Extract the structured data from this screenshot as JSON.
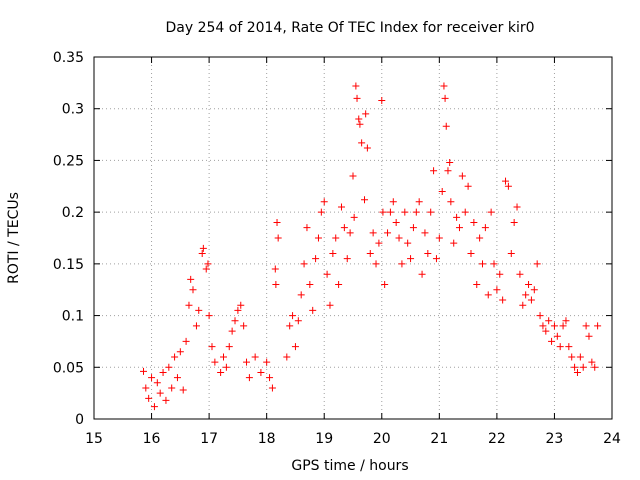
{
  "chart_data": {
    "type": "scatter",
    "title": "Day 254 of 2014, Rate Of TEC Index for receiver kir0",
    "xlabel": "GPS time / hours",
    "ylabel": "ROTI / TECUs",
    "xlim": [
      15,
      24
    ],
    "ylim": [
      0,
      0.35
    ],
    "x_ticks": [
      15,
      16,
      17,
      18,
      19,
      20,
      21,
      22,
      23,
      24
    ],
    "x_tick_labels": [
      "15",
      "16",
      "17",
      "18",
      "19",
      "20",
      "21",
      "22",
      "23",
      "24"
    ],
    "y_ticks": [
      0,
      0.05,
      0.1,
      0.15,
      0.2,
      0.25,
      0.3,
      0.35
    ],
    "y_tick_labels": [
      "0",
      "0.05",
      "0.1",
      "0.15",
      "0.2",
      "0.25",
      "0.3",
      "0.35"
    ],
    "grid": true,
    "marker": "+",
    "color": "#ff0000",
    "series": [
      {
        "name": "ROTI",
        "points": [
          [
            15.86,
            0.046
          ],
          [
            15.9,
            0.03
          ],
          [
            15.95,
            0.02
          ],
          [
            16.0,
            0.04
          ],
          [
            16.05,
            0.012
          ],
          [
            16.1,
            0.035
          ],
          [
            16.15,
            0.025
          ],
          [
            16.2,
            0.045
          ],
          [
            16.25,
            0.018
          ],
          [
            16.3,
            0.05
          ],
          [
            16.35,
            0.03
          ],
          [
            16.4,
            0.06
          ],
          [
            16.45,
            0.04
          ],
          [
            16.5,
            0.065
          ],
          [
            16.55,
            0.028
          ],
          [
            16.6,
            0.075
          ],
          [
            16.65,
            0.11
          ],
          [
            16.68,
            0.135
          ],
          [
            16.72,
            0.125
          ],
          [
            16.78,
            0.09
          ],
          [
            16.82,
            0.105
          ],
          [
            16.88,
            0.16
          ],
          [
            16.9,
            0.165
          ],
          [
            16.95,
            0.145
          ],
          [
            16.98,
            0.15
          ],
          [
            17.0,
            0.1
          ],
          [
            17.05,
            0.07
          ],
          [
            17.1,
            0.055
          ],
          [
            17.2,
            0.045
          ],
          [
            17.25,
            0.06
          ],
          [
            17.3,
            0.05
          ],
          [
            17.35,
            0.07
          ],
          [
            17.4,
            0.085
          ],
          [
            17.45,
            0.095
          ],
          [
            17.5,
            0.105
          ],
          [
            17.55,
            0.11
          ],
          [
            17.6,
            0.09
          ],
          [
            17.65,
            0.055
          ],
          [
            17.7,
            0.04
          ],
          [
            17.8,
            0.06
          ],
          [
            17.9,
            0.045
          ],
          [
            18.0,
            0.055
          ],
          [
            18.05,
            0.04
          ],
          [
            18.1,
            0.03
          ],
          [
            18.15,
            0.145
          ],
          [
            18.16,
            0.13
          ],
          [
            18.18,
            0.19
          ],
          [
            18.2,
            0.175
          ],
          [
            18.35,
            0.06
          ],
          [
            18.4,
            0.09
          ],
          [
            18.45,
            0.1
          ],
          [
            18.5,
            0.07
          ],
          [
            18.55,
            0.095
          ],
          [
            18.6,
            0.12
          ],
          [
            18.65,
            0.15
          ],
          [
            18.7,
            0.185
          ],
          [
            18.75,
            0.13
          ],
          [
            18.8,
            0.105
          ],
          [
            18.85,
            0.155
          ],
          [
            18.9,
            0.175
          ],
          [
            18.95,
            0.2
          ],
          [
            19.0,
            0.21
          ],
          [
            19.05,
            0.14
          ],
          [
            19.1,
            0.11
          ],
          [
            19.15,
            0.16
          ],
          [
            19.2,
            0.175
          ],
          [
            19.25,
            0.13
          ],
          [
            19.3,
            0.205
          ],
          [
            19.35,
            0.185
          ],
          [
            19.4,
            0.155
          ],
          [
            19.45,
            0.18
          ],
          [
            19.5,
            0.235
          ],
          [
            19.52,
            0.195
          ],
          [
            19.55,
            0.322
          ],
          [
            19.57,
            0.31
          ],
          [
            19.6,
            0.29
          ],
          [
            19.62,
            0.285
          ],
          [
            19.65,
            0.267
          ],
          [
            19.7,
            0.212
          ],
          [
            19.72,
            0.295
          ],
          [
            19.75,
            0.262
          ],
          [
            19.8,
            0.16
          ],
          [
            19.85,
            0.18
          ],
          [
            19.9,
            0.15
          ],
          [
            19.95,
            0.17
          ],
          [
            20.0,
            0.308
          ],
          [
            20.02,
            0.2
          ],
          [
            20.05,
            0.13
          ],
          [
            20.1,
            0.18
          ],
          [
            20.15,
            0.2
          ],
          [
            20.2,
            0.21
          ],
          [
            20.25,
            0.19
          ],
          [
            20.3,
            0.175
          ],
          [
            20.35,
            0.15
          ],
          [
            20.4,
            0.2
          ],
          [
            20.45,
            0.17
          ],
          [
            20.5,
            0.155
          ],
          [
            20.55,
            0.185
          ],
          [
            20.6,
            0.2
          ],
          [
            20.65,
            0.21
          ],
          [
            20.7,
            0.14
          ],
          [
            20.75,
            0.18
          ],
          [
            20.8,
            0.16
          ],
          [
            20.85,
            0.2
          ],
          [
            20.9,
            0.24
          ],
          [
            20.95,
            0.155
          ],
          [
            21.0,
            0.175
          ],
          [
            21.05,
            0.22
          ],
          [
            21.08,
            0.322
          ],
          [
            21.1,
            0.31
          ],
          [
            21.12,
            0.283
          ],
          [
            21.15,
            0.24
          ],
          [
            21.18,
            0.248
          ],
          [
            21.2,
            0.21
          ],
          [
            21.25,
            0.17
          ],
          [
            21.3,
            0.195
          ],
          [
            21.35,
            0.185
          ],
          [
            21.4,
            0.235
          ],
          [
            21.45,
            0.2
          ],
          [
            21.5,
            0.225
          ],
          [
            21.55,
            0.16
          ],
          [
            21.6,
            0.19
          ],
          [
            21.65,
            0.13
          ],
          [
            21.7,
            0.175
          ],
          [
            21.75,
            0.15
          ],
          [
            21.8,
            0.185
          ],
          [
            21.85,
            0.12
          ],
          [
            21.9,
            0.2
          ],
          [
            21.95,
            0.15
          ],
          [
            22.0,
            0.125
          ],
          [
            22.05,
            0.14
          ],
          [
            22.1,
            0.115
          ],
          [
            22.15,
            0.23
          ],
          [
            22.2,
            0.225
          ],
          [
            22.25,
            0.16
          ],
          [
            22.3,
            0.19
          ],
          [
            22.35,
            0.205
          ],
          [
            22.4,
            0.14
          ],
          [
            22.45,
            0.11
          ],
          [
            22.5,
            0.12
          ],
          [
            22.55,
            0.13
          ],
          [
            22.6,
            0.115
          ],
          [
            22.65,
            0.125
          ],
          [
            22.7,
            0.15
          ],
          [
            22.75,
            0.1
          ],
          [
            22.8,
            0.09
          ],
          [
            22.85,
            0.085
          ],
          [
            22.9,
            0.095
          ],
          [
            22.95,
            0.075
          ],
          [
            23.0,
            0.09
          ],
          [
            23.05,
            0.08
          ],
          [
            23.1,
            0.07
          ],
          [
            23.15,
            0.09
          ],
          [
            23.2,
            0.095
          ],
          [
            23.25,
            0.07
          ],
          [
            23.3,
            0.06
          ],
          [
            23.35,
            0.05
          ],
          [
            23.4,
            0.045
          ],
          [
            23.45,
            0.06
          ],
          [
            23.5,
            0.05
          ],
          [
            23.55,
            0.09
          ],
          [
            23.6,
            0.08
          ],
          [
            23.65,
            0.055
          ],
          [
            23.7,
            0.05
          ],
          [
            23.75,
            0.09
          ]
        ]
      }
    ]
  }
}
